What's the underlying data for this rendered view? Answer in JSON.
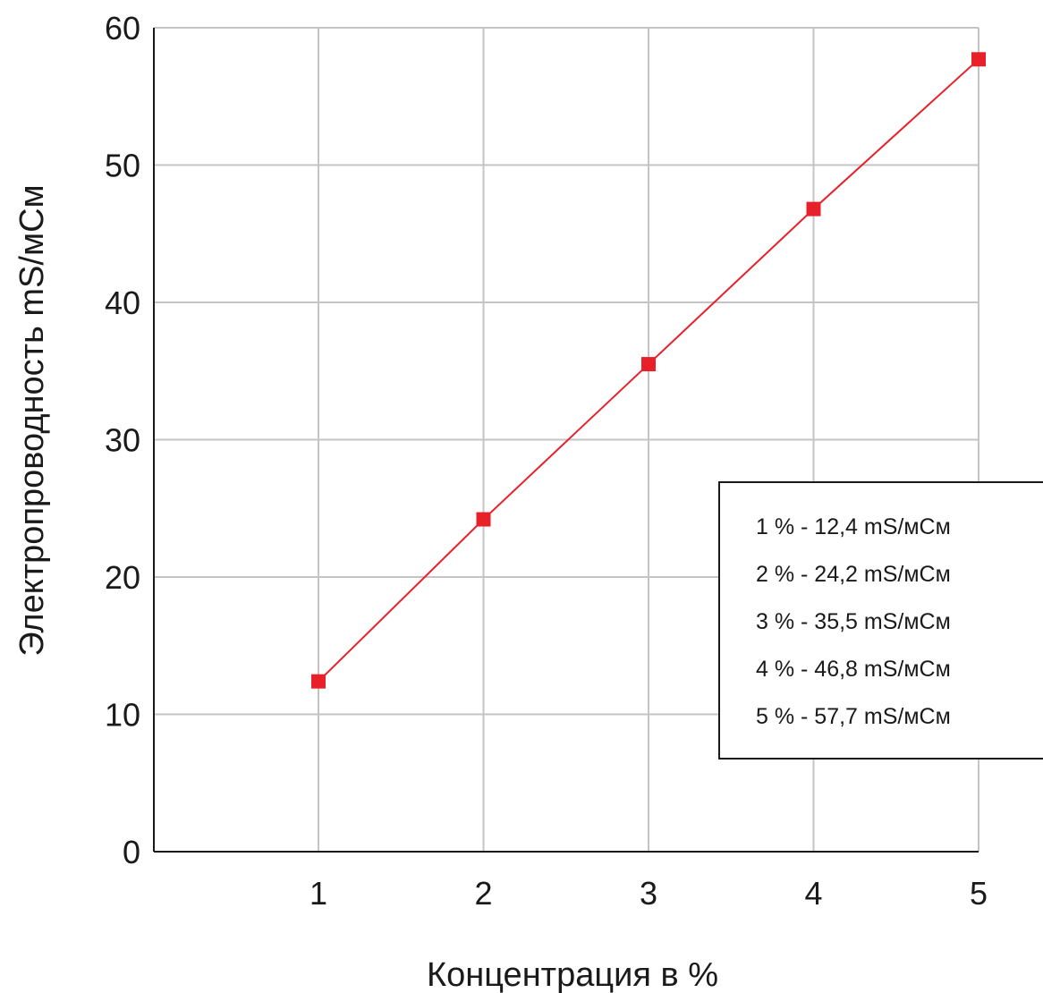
{
  "chart_data": {
    "type": "line",
    "xlabel": "Концентрация в %",
    "ylabel": "Электропроводность mS/мСм",
    "x": [
      1,
      2,
      3,
      4,
      5
    ],
    "x_ticks": [
      "1",
      "2",
      "3",
      "4",
      "5"
    ],
    "ylim": [
      0,
      60
    ],
    "y_ticks": [
      "0",
      "10",
      "20",
      "30",
      "40",
      "50",
      "60"
    ],
    "grid": true,
    "series": [
      {
        "values": [
          12.4,
          24.2,
          35.5,
          46.8,
          57.7
        ],
        "color": "#e8202a",
        "marker": "square"
      }
    ],
    "annotation_box": {
      "position": "right-middle",
      "lines": [
        "1 % - 12,4 mS/мСм",
        "2 % - 24,2 mS/мСм",
        "3 % - 35,5 mS/мСм",
        "4 % - 46,8 mS/мСм",
        "5 % - 57,7 mS/мСм"
      ]
    }
  }
}
